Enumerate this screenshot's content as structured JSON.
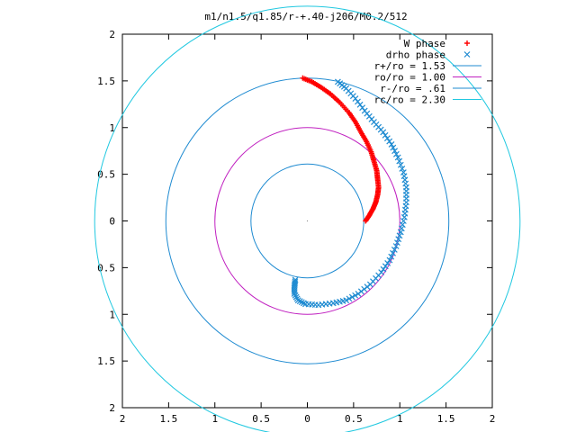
{
  "chart_data": {
    "type": "scatter",
    "title": "m1/n1.5/q1.85/r-+.40-j206/M0.2/512",
    "xlabel": "",
    "ylabel": "",
    "xlim": [
      -2,
      2
    ],
    "ylim": [
      -2,
      2
    ],
    "x_ticks": [
      -2,
      -1.5,
      -1,
      -0.5,
      0,
      0.5,
      1,
      1.5,
      2
    ],
    "y_ticks": [
      -2,
      -1.5,
      -1,
      -0.5,
      0,
      0.5,
      1,
      1.5,
      2
    ],
    "x_tick_labels": [
      "2",
      "1.5",
      "1",
      "0.5",
      "0",
      "0.5",
      "1",
      "1.5",
      "2"
    ],
    "y_tick_labels": [
      "2",
      "1.5",
      "1",
      "0.5",
      "0",
      "0.5",
      "1",
      "1.5",
      "2"
    ],
    "grid": false,
    "legend_position": "top-right",
    "circles": [
      {
        "name": "r+/ro = 1.53",
        "radius": 1.53,
        "color": "#1f8bd1"
      },
      {
        "name": "ro/ro = 1.00",
        "radius": 1.0,
        "color": "#c020c0"
      },
      {
        "name": "r-/ro = .61",
        "radius": 0.61,
        "color": "#1f8bd1"
      },
      {
        "name": "rc/ro = 2.30",
        "radius": 2.3,
        "color": "#20c8e0"
      }
    ],
    "series": [
      {
        "name": "W phase",
        "marker": "+",
        "color": "#ff0000",
        "points": [
          [
            -0.05,
            1.53
          ],
          [
            0.05,
            1.49
          ],
          [
            0.15,
            1.43
          ],
          [
            0.25,
            1.36
          ],
          [
            0.35,
            1.27
          ],
          [
            0.45,
            1.16
          ],
          [
            0.52,
            1.06
          ],
          [
            0.58,
            0.95
          ],
          [
            0.64,
            0.85
          ],
          [
            0.69,
            0.74
          ],
          [
            0.72,
            0.64
          ],
          [
            0.75,
            0.54
          ],
          [
            0.76,
            0.45
          ],
          [
            0.77,
            0.36
          ],
          [
            0.76,
            0.28
          ],
          [
            0.74,
            0.2
          ],
          [
            0.71,
            0.13
          ],
          [
            0.67,
            0.06
          ],
          [
            0.63,
            0.0
          ]
        ]
      },
      {
        "name": "drho phase",
        "marker": "x",
        "color": "#1f8bd1",
        "points": [
          [
            0.33,
            1.49
          ],
          [
            0.42,
            1.42
          ],
          [
            0.52,
            1.31
          ],
          [
            0.62,
            1.18
          ],
          [
            0.72,
            1.06
          ],
          [
            0.82,
            0.95
          ],
          [
            0.91,
            0.82
          ],
          [
            0.98,
            0.68
          ],
          [
            1.04,
            0.52
          ],
          [
            1.07,
            0.36
          ],
          [
            1.07,
            0.2
          ],
          [
            1.05,
            0.04
          ],
          [
            1.01,
            -0.12
          ],
          [
            0.96,
            -0.27
          ],
          [
            0.89,
            -0.42
          ],
          [
            0.8,
            -0.55
          ],
          [
            0.68,
            -0.68
          ],
          [
            0.55,
            -0.78
          ],
          [
            0.42,
            -0.85
          ],
          [
            0.28,
            -0.88
          ],
          [
            0.12,
            -0.9
          ],
          [
            -0.02,
            -0.89
          ],
          [
            -0.1,
            -0.85
          ],
          [
            -0.14,
            -0.78
          ],
          [
            -0.14,
            -0.7
          ],
          [
            -0.13,
            -0.63
          ]
        ]
      }
    ]
  }
}
